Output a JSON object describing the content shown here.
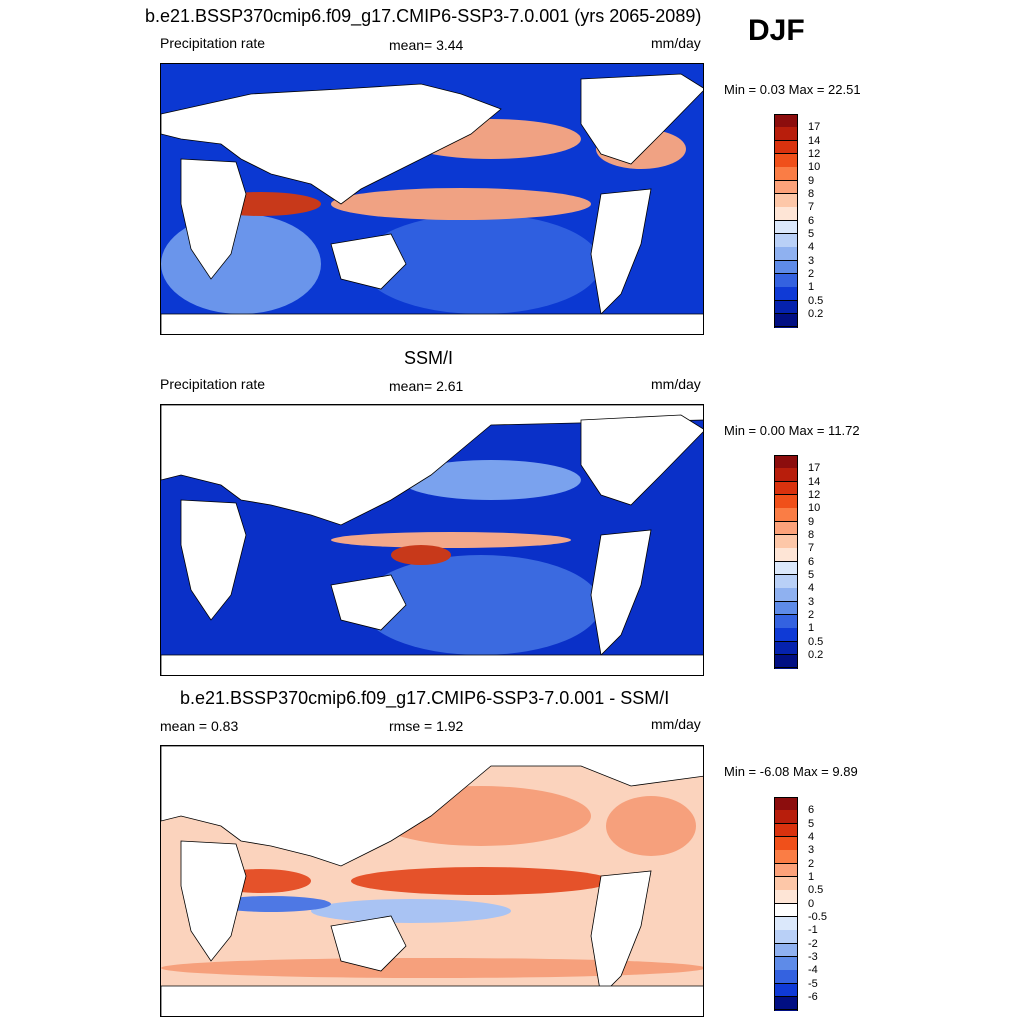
{
  "season": "DJF",
  "panels": [
    {
      "title": "b.e21.BSSP370cmip6.f09_g17.CMIP6-SSP3-7.0.001 (yrs 2065-2089)",
      "left_label": "Precipitation rate",
      "center_label": "mean=   3.44",
      "right_label": "mm/day",
      "minmax": "Min =   0.03 Max =  22.51",
      "colorbar": {
        "labels": [
          "17",
          "14",
          "12",
          "10",
          "9",
          "8",
          "7",
          "6",
          "5",
          "4",
          "3",
          "2",
          "1",
          "0.5",
          "0.2"
        ],
        "colors": [
          "#8c0d0d",
          "#b81e0c",
          "#d9320e",
          "#f0501a",
          "#fa7d45",
          "#fca27a",
          "#fdc7a8",
          "#fee5d6",
          "#dbe8fb",
          "#b9d0f7",
          "#8fb1f0",
          "#5e8be8",
          "#3462e0",
          "#0f3ad6",
          "#0522ae",
          "#010f83"
        ]
      },
      "map_fill": [
        "#0b38d2",
        "#2f5fe0",
        "#6a95eb",
        "#f0a283",
        "#c8391a"
      ]
    },
    {
      "title": "SSM/I",
      "left_label": "Precipitation rate",
      "center_label": "mean=   2.61",
      "right_label": "mm/day",
      "minmax": "Min =   0.00 Max =  11.72",
      "colorbar": {
        "labels": [
          "17",
          "14",
          "12",
          "10",
          "9",
          "8",
          "7",
          "6",
          "5",
          "4",
          "3",
          "2",
          "1",
          "0.5",
          "0.2"
        ],
        "colors": [
          "#8c0d0d",
          "#b81e0c",
          "#d9320e",
          "#f0501a",
          "#fa7d45",
          "#fca27a",
          "#fdc7a8",
          "#fee5d6",
          "#dbe8fb",
          "#b9d0f7",
          "#8fb1f0",
          "#5e8be8",
          "#3462e0",
          "#0f3ad6",
          "#0522ae",
          "#010f83"
        ]
      },
      "map_fill": [
        "#0a30c8",
        "#3b6ae0",
        "#7aa2ee",
        "#f3a88a",
        "#c8391a"
      ]
    },
    {
      "title": "b.e21.BSSP370cmip6.f09_g17.CMIP6-SSP3-7.0.001 - SSM/I",
      "left_label": "mean =   0.83",
      "center_label": "rmse =   1.92",
      "right_label": "mm/day",
      "minmax": "Min =  -6.08 Max =   9.89",
      "colorbar": {
        "labels": [
          "6",
          "5",
          "4",
          "3",
          "2",
          "1",
          "0.5",
          "0",
          "-0.5",
          "-1",
          "-2",
          "-3",
          "-4",
          "-5",
          "-6"
        ],
        "colors": [
          "#8c0d0d",
          "#b81e0c",
          "#d9320e",
          "#f0501a",
          "#fa7d45",
          "#fca27a",
          "#fdc7a8",
          "#fee5d6",
          "#ffffff",
          "#dbe8fb",
          "#b9d0f7",
          "#8fb1f0",
          "#5e8be8",
          "#3462e0",
          "#0f3ad6",
          "#010f83"
        ]
      },
      "map_fill": [
        "#fbd3bd",
        "#f6a07c",
        "#e5522a",
        "#a9c3f3",
        "#4e78e4"
      ]
    }
  ]
}
